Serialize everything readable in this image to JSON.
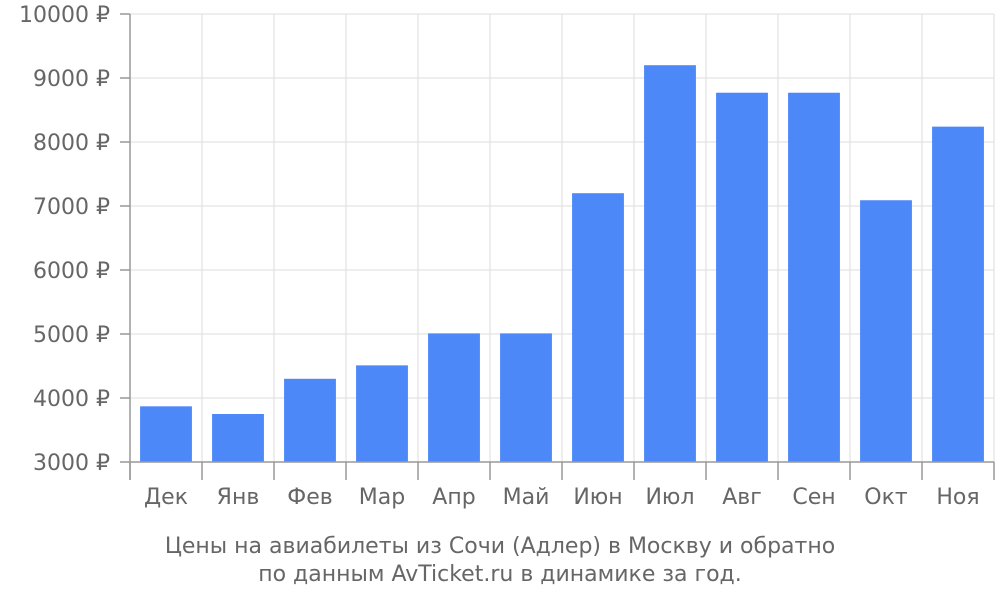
{
  "chart_data": {
    "type": "bar",
    "categories": [
      "Дек",
      "Янв",
      "Фев",
      "Мар",
      "Апр",
      "Май",
      "Июн",
      "Июл",
      "Авг",
      "Сен",
      "Окт",
      "Ноя"
    ],
    "values": [
      3870,
      3750,
      4300,
      4510,
      5010,
      5010,
      7200,
      9200,
      8770,
      8770,
      7090,
      8240
    ],
    "ylim": [
      3000,
      10000
    ],
    "yticks": [
      3000,
      4000,
      5000,
      6000,
      7000,
      8000,
      9000,
      10000
    ],
    "y_tick_suffix": " ₽",
    "bar_color": "#4d88f9",
    "grid": true,
    "caption": [
      "Цены на авиабилеты из Сочи (Адлер) в Москву и обратно",
      "по данным AvTicket.ru в динамике за год."
    ]
  }
}
